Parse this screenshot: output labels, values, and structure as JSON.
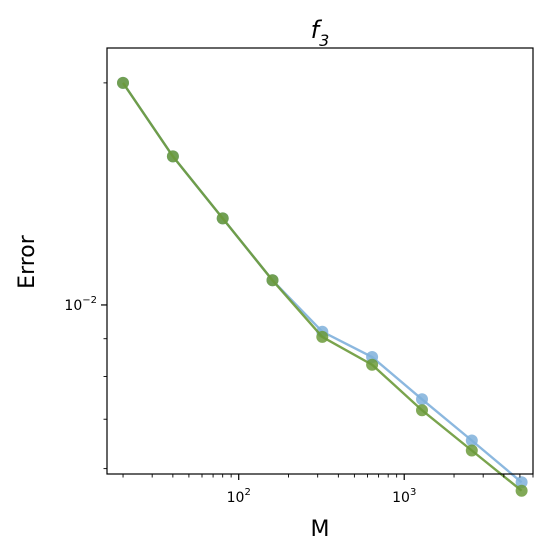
{
  "chart_data": {
    "type": "line",
    "title": "f",
    "title_subscript": "3",
    "xlabel": "M",
    "ylabel": "Error",
    "xscale": "log",
    "yscale": "log",
    "xlim": [
      16,
      6000
    ],
    "ylim": [
      0.0059,
      0.0223
    ],
    "grid": false,
    "legend": "none",
    "x_ticks": [
      {
        "value": 100,
        "base": "10",
        "exp": "2"
      },
      {
        "value": 1000,
        "base": "10",
        "exp": "3"
      }
    ],
    "y_ticks": [
      {
        "value": 0.01,
        "base": "10",
        "exp": "−2"
      }
    ],
    "series": [
      {
        "color": "#7fb0db",
        "x": [
          20,
          40,
          80,
          160,
          320,
          640,
          1280,
          2560,
          5120
        ],
        "y": [
          0.02,
          0.0159,
          0.0131,
          0.0108,
          0.0092,
          0.0085,
          0.00745,
          0.00655,
          0.00575
        ]
      },
      {
        "color": "#6b9a3a",
        "x": [
          20,
          40,
          80,
          160,
          320,
          640,
          1280,
          2560,
          5120
        ],
        "y": [
          0.02,
          0.0159,
          0.0131,
          0.0108,
          0.00905,
          0.0083,
          0.0072,
          0.00635,
          0.0056
        ]
      }
    ]
  }
}
